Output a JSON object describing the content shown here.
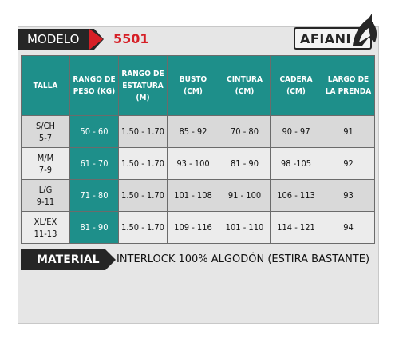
{
  "header": {
    "modelo_label": "MODELO",
    "modelo_code": "5501",
    "brand": "AFIANI"
  },
  "table": {
    "columns": [
      "TALLA",
      "RANGO DE PESO (KG)",
      "RANGO DE ESTATURA (M)",
      "BUSTO (CM)",
      "CINTURA (CM)",
      "CADERA (CM)",
      "LARGO DE LA PRENDA"
    ],
    "rows": [
      {
        "talla_1": "S/CH",
        "talla_2": "5-7",
        "peso": "50 - 60",
        "estatura": "1.50 - 1.70",
        "busto": "85 - 92",
        "cintura": "70 - 80",
        "cadera": "90 - 97",
        "largo": "91"
      },
      {
        "talla_1": "M/M",
        "talla_2": "7-9",
        "peso": "61 - 70",
        "estatura": "1.50 - 1.70",
        "busto": "93 - 100",
        "cintura": "81 - 90",
        "cadera": "98 -105",
        "largo": "92"
      },
      {
        "talla_1": "L/G",
        "talla_2": "9-11",
        "peso": "71 - 80",
        "estatura": "1.50 - 1.70",
        "busto": "101 - 108",
        "cintura": "91 - 100",
        "cadera": "106 - 113",
        "largo": "93"
      },
      {
        "talla_1": "XL/EX",
        "talla_2": "11-13",
        "peso": "81 - 90",
        "estatura": "1.50 - 1.70",
        "busto": "109 - 116",
        "cintura": "101 - 110",
        "cadera": "114 - 121",
        "largo": "94"
      }
    ]
  },
  "material": {
    "label": "MATERIAL",
    "value": "INTERLOCK 100% ALGODÓN (ESTIRA BASTANTE)"
  },
  "colors": {
    "teal": "#1e8f8a",
    "dark": "#262626",
    "red": "#d61f26"
  }
}
